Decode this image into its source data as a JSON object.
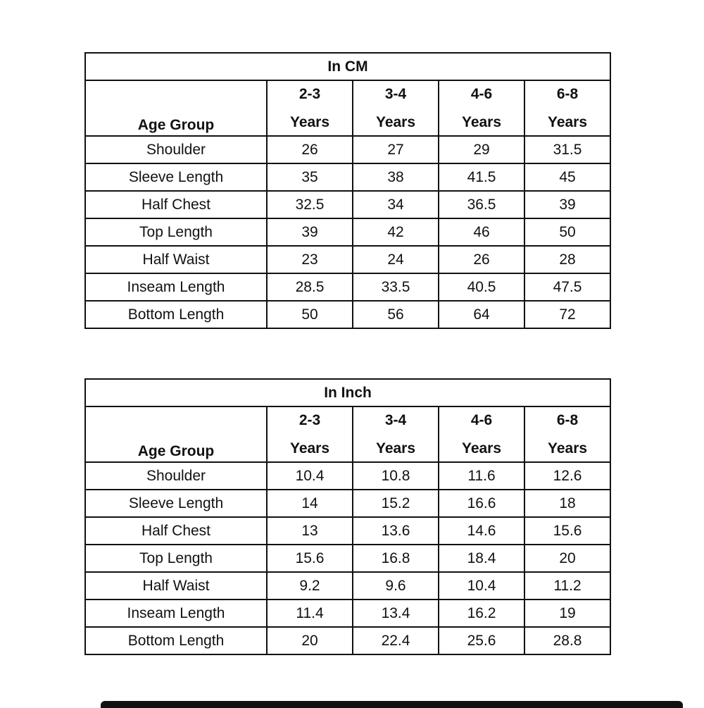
{
  "tables": [
    {
      "title": "In CM",
      "corner": "Age Group",
      "columns": [
        [
          "2-3",
          "Years"
        ],
        [
          "3-4",
          "Years"
        ],
        [
          "4-6",
          "Years"
        ],
        [
          "6-8",
          "Years"
        ]
      ],
      "rows": [
        {
          "label": "Shoulder",
          "values": [
            "26",
            "27",
            "29",
            "31.5"
          ]
        },
        {
          "label": "Sleeve Length",
          "values": [
            "35",
            "38",
            "41.5",
            "45"
          ]
        },
        {
          "label": "Half Chest",
          "values": [
            "32.5",
            "34",
            "36.5",
            "39"
          ]
        },
        {
          "label": "Top Length",
          "values": [
            "39",
            "42",
            "46",
            "50"
          ]
        },
        {
          "label": "Half Waist",
          "values": [
            "23",
            "24",
            "26",
            "28"
          ]
        },
        {
          "label": "Inseam Length",
          "values": [
            "28.5",
            "33.5",
            "40.5",
            "47.5"
          ]
        },
        {
          "label": "Bottom Length",
          "values": [
            "50",
            "56",
            "64",
            "72"
          ]
        }
      ]
    },
    {
      "title": "In Inch",
      "corner": "Age Group",
      "columns": [
        [
          "2-3",
          "Years"
        ],
        [
          "3-4",
          "Years"
        ],
        [
          "4-6",
          "Years"
        ],
        [
          "6-8",
          "Years"
        ]
      ],
      "rows": [
        {
          "label": "Shoulder",
          "values": [
            "10.4",
            "10.8",
            "11.6",
            "12.6"
          ]
        },
        {
          "label": "Sleeve Length",
          "values": [
            "14",
            "15.2",
            "16.6",
            "18"
          ]
        },
        {
          "label": "Half Chest",
          "values": [
            "13",
            "13.6",
            "14.6",
            "15.6"
          ]
        },
        {
          "label": "Top Length",
          "values": [
            "15.6",
            "16.8",
            "18.4",
            "20"
          ]
        },
        {
          "label": "Half Waist",
          "values": [
            "9.2",
            "9.6",
            "10.4",
            "11.2"
          ]
        },
        {
          "label": "Inseam Length",
          "values": [
            "11.4",
            "13.4",
            "16.2",
            "19"
          ]
        },
        {
          "label": "Bottom Length",
          "values": [
            "20",
            "22.4",
            "25.6",
            "28.8"
          ]
        }
      ]
    }
  ]
}
